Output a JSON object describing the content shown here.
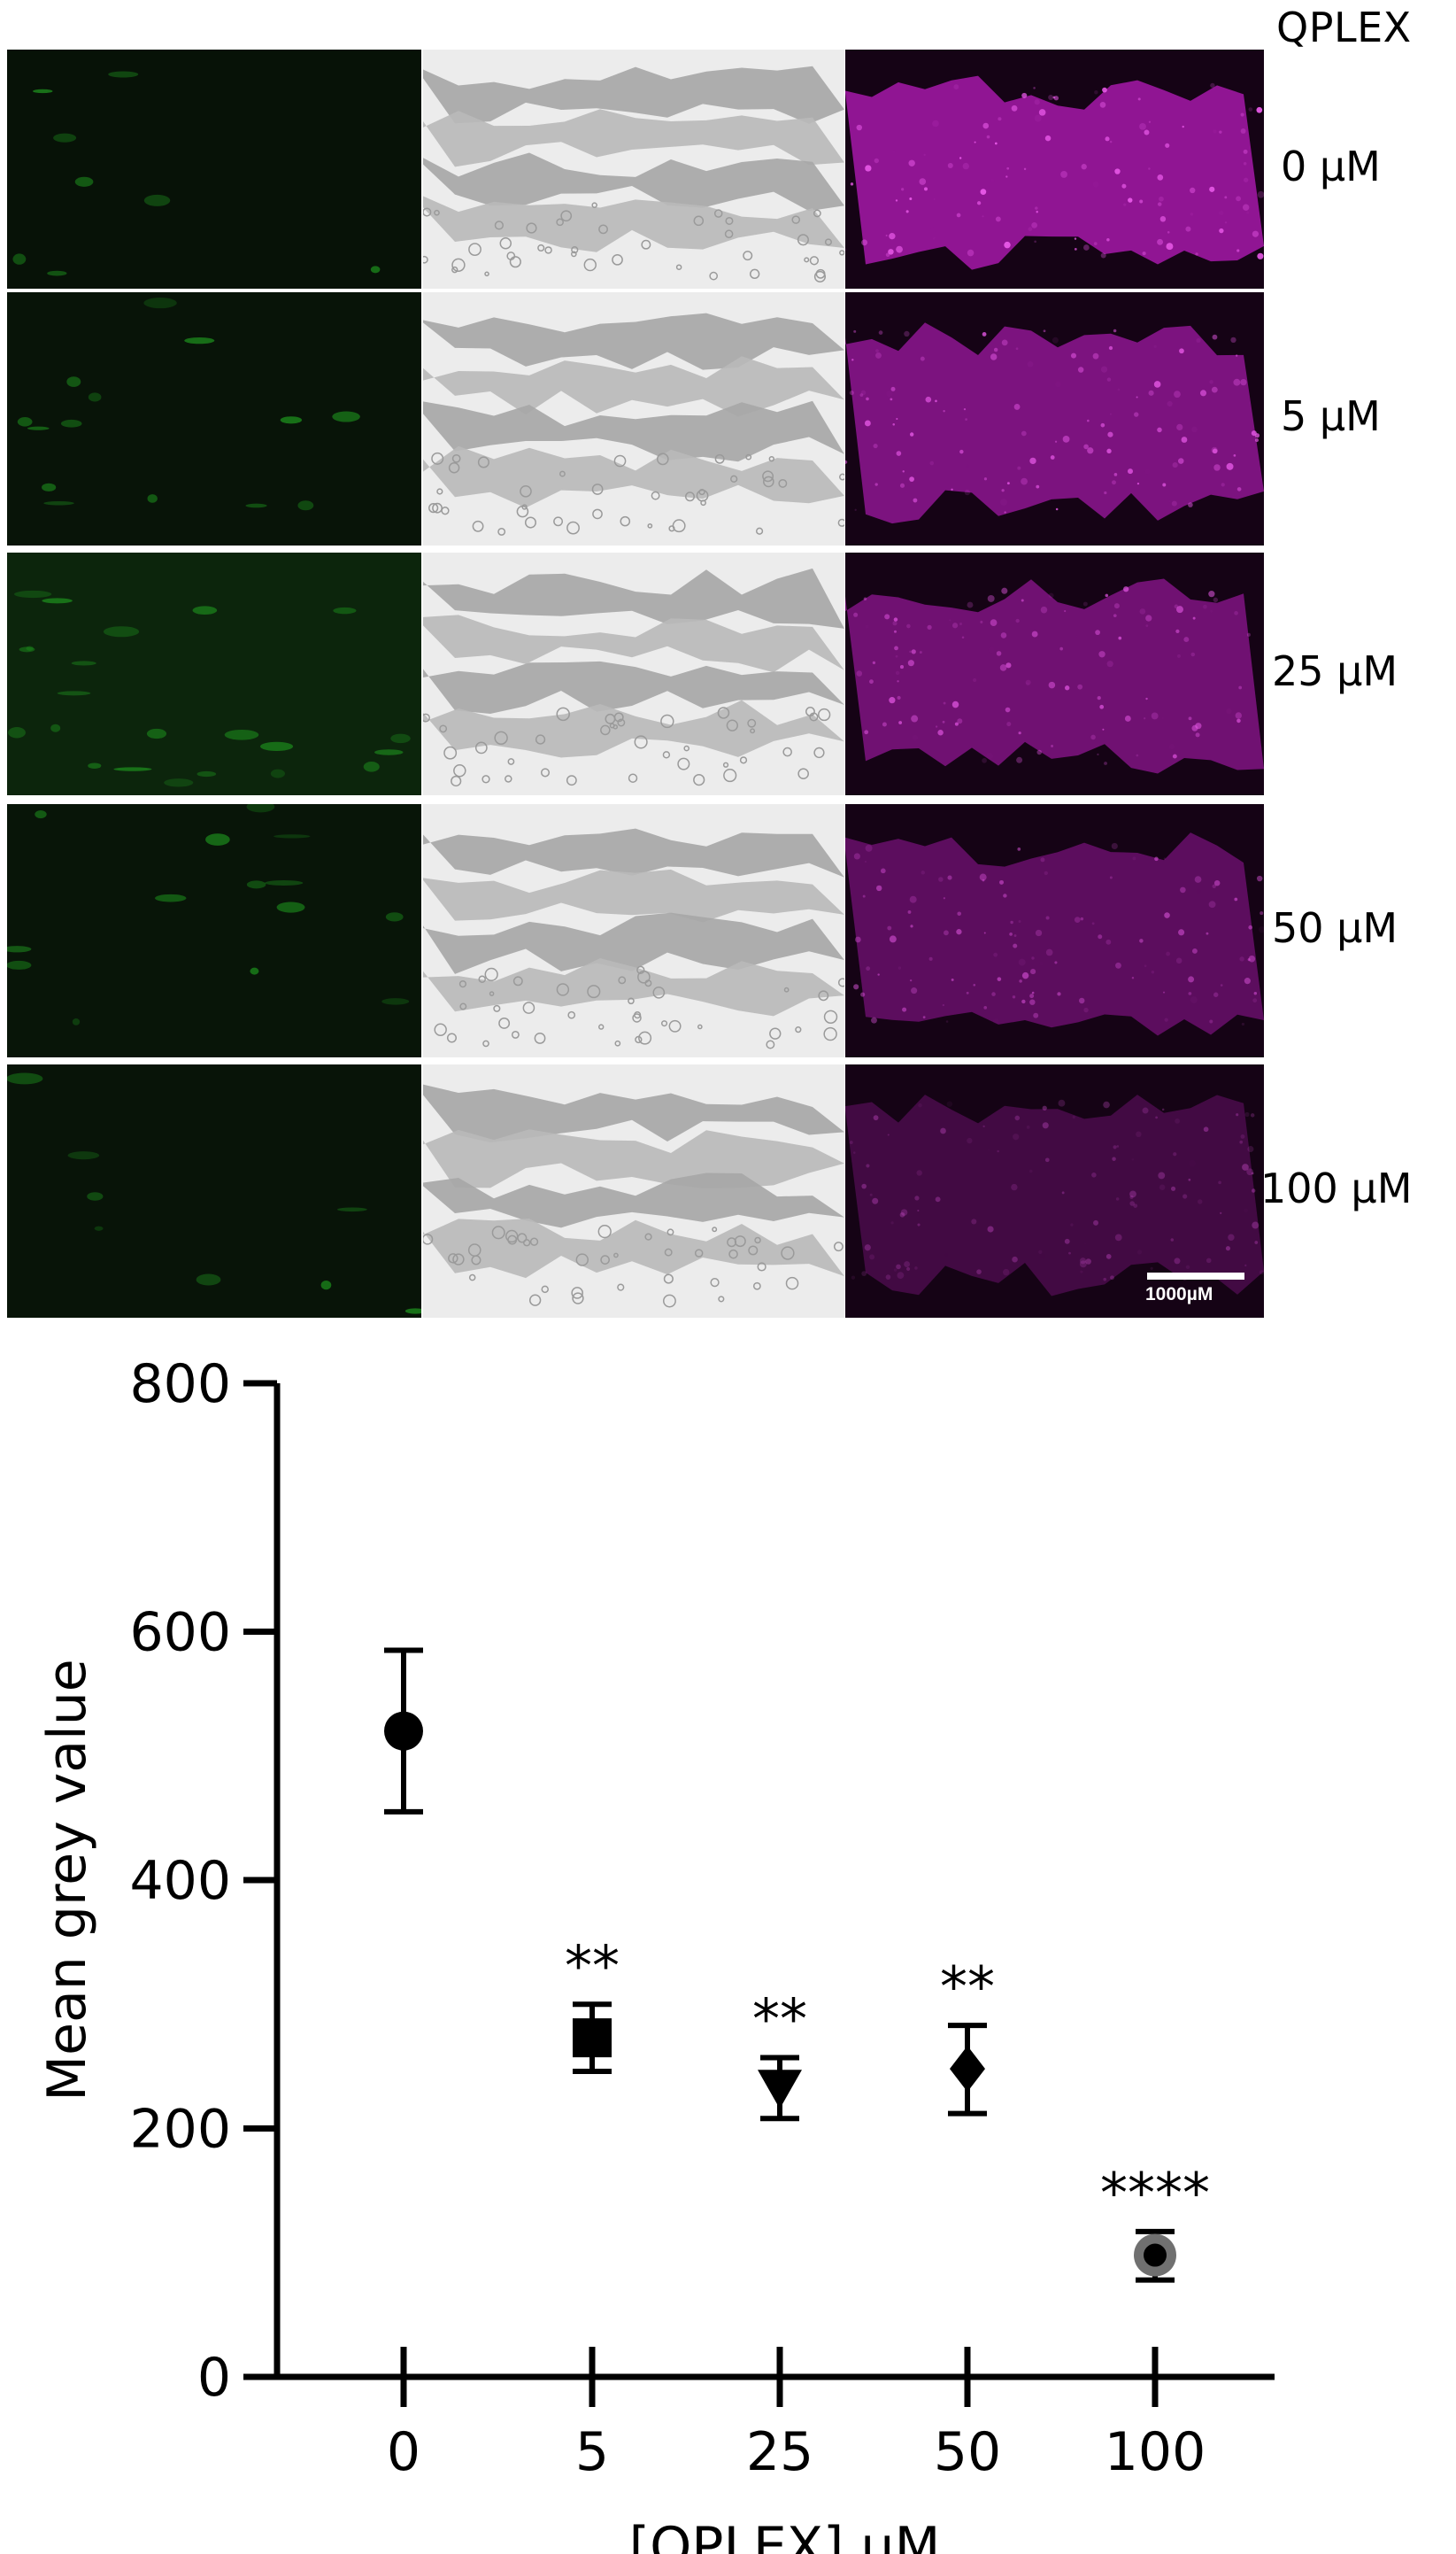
{
  "figure": {
    "header": "QPLEX",
    "rows": [
      {
        "label": "0 µM"
      },
      {
        "label": "5 µM"
      },
      {
        "label": "25 µM"
      },
      {
        "label": "50 µM"
      },
      {
        "label": "100 µM"
      }
    ],
    "scalebar_label": "1000µM",
    "panel_colors": {
      "green": "#1f9a1f",
      "grey": "#9a9a9a",
      "magenta": "#c21ec6"
    },
    "magenta_intensity": [
      0.95,
      0.8,
      0.7,
      0.55,
      0.35
    ]
  },
  "chart_data": {
    "type": "scatter",
    "categories": [
      "0",
      "5",
      "25",
      "50",
      "100"
    ],
    "values": [
      520,
      273,
      233,
      248,
      98
    ],
    "error_upper": [
      585,
      300,
      257,
      283,
      117
    ],
    "error_lower": [
      455,
      246,
      208,
      212,
      78
    ],
    "markers": [
      "circle",
      "square",
      "triangle-down",
      "diamond",
      "circle-grey"
    ],
    "annotations": [
      "",
      "**",
      "**",
      "**",
      "****"
    ],
    "xlabel": "[QPLEX] µM",
    "ylabel": "Mean grey value",
    "yticks": [
      0,
      200,
      400,
      600,
      800
    ],
    "ylim": [
      0,
      800
    ]
  }
}
